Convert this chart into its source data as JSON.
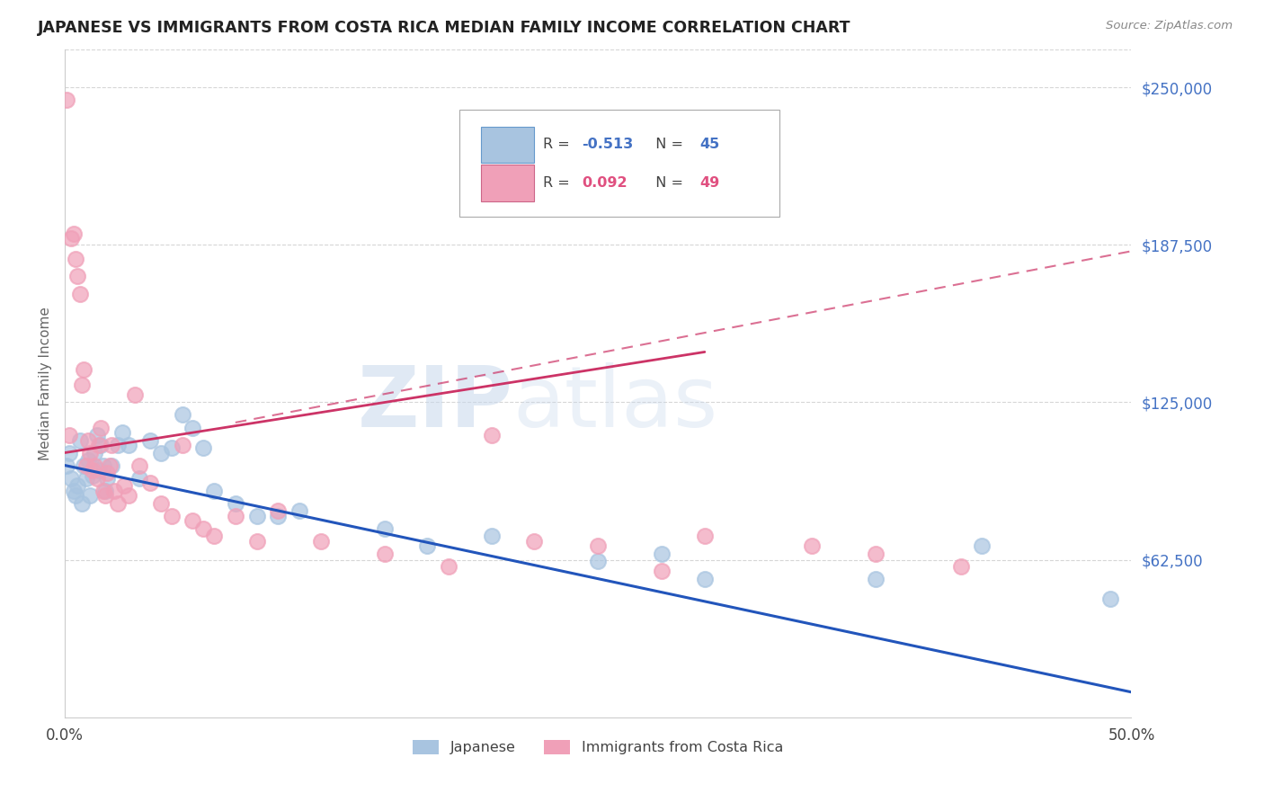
{
  "title": "JAPANESE VS IMMIGRANTS FROM COSTA RICA MEDIAN FAMILY INCOME CORRELATION CHART",
  "source": "Source: ZipAtlas.com",
  "ylabel": "Median Family Income",
  "xlim": [
    0.0,
    0.5
  ],
  "ylim": [
    0,
    265000
  ],
  "ytick_labels_right": [
    "$62,500",
    "$125,000",
    "$187,500",
    "$250,000"
  ],
  "ytick_positions_right": [
    62500,
    125000,
    187500,
    250000
  ],
  "watermark_zip": "ZIP",
  "watermark_atlas": "atlas",
  "legend_jp_r": "-0.513",
  "legend_jp_n": "45",
  "legend_cr_r": "0.092",
  "legend_cr_n": "49",
  "japanese_color": "#a8c4e0",
  "cr_color": "#f0a0b8",
  "japanese_line_color": "#2255bb",
  "cr_line_color": "#cc3366",
  "r_color_jp": "#4472c4",
  "r_color_cr": "#e05080",
  "background_color": "#ffffff",
  "grid_color": "#cccccc",
  "japanese_x": [
    0.001,
    0.002,
    0.003,
    0.004,
    0.005,
    0.006,
    0.007,
    0.008,
    0.009,
    0.01,
    0.011,
    0.012,
    0.013,
    0.014,
    0.015,
    0.016,
    0.017,
    0.018,
    0.019,
    0.02,
    0.022,
    0.025,
    0.027,
    0.03,
    0.035,
    0.04,
    0.045,
    0.05,
    0.055,
    0.06,
    0.065,
    0.07,
    0.08,
    0.09,
    0.1,
    0.11,
    0.15,
    0.17,
    0.2,
    0.25,
    0.28,
    0.3,
    0.38,
    0.43,
    0.49
  ],
  "japanese_y": [
    100000,
    105000,
    95000,
    90000,
    88000,
    92000,
    110000,
    85000,
    100000,
    95000,
    102000,
    88000,
    96000,
    105000,
    112000,
    98000,
    108000,
    100000,
    90000,
    95000,
    100000,
    108000,
    113000,
    108000,
    95000,
    110000,
    105000,
    107000,
    120000,
    115000,
    107000,
    90000,
    85000,
    80000,
    80000,
    82000,
    75000,
    68000,
    72000,
    62000,
    65000,
    55000,
    55000,
    68000,
    47000
  ],
  "cr_x": [
    0.001,
    0.002,
    0.003,
    0.004,
    0.005,
    0.006,
    0.007,
    0.008,
    0.009,
    0.01,
    0.011,
    0.012,
    0.013,
    0.014,
    0.015,
    0.016,
    0.017,
    0.018,
    0.019,
    0.02,
    0.021,
    0.022,
    0.023,
    0.025,
    0.028,
    0.03,
    0.033,
    0.035,
    0.04,
    0.045,
    0.05,
    0.055,
    0.06,
    0.065,
    0.07,
    0.08,
    0.09,
    0.1,
    0.12,
    0.15,
    0.18,
    0.2,
    0.22,
    0.25,
    0.28,
    0.3,
    0.35,
    0.38,
    0.42
  ],
  "cr_y": [
    245000,
    112000,
    190000,
    192000,
    182000,
    175000,
    168000,
    132000,
    138000,
    100000,
    110000,
    105000,
    98000,
    100000,
    95000,
    108000,
    115000,
    90000,
    88000,
    97000,
    100000,
    108000,
    90000,
    85000,
    92000,
    88000,
    128000,
    100000,
    93000,
    85000,
    80000,
    108000,
    78000,
    75000,
    72000,
    80000,
    70000,
    82000,
    70000,
    65000,
    60000,
    112000,
    70000,
    68000,
    58000,
    72000,
    68000,
    65000,
    60000
  ]
}
